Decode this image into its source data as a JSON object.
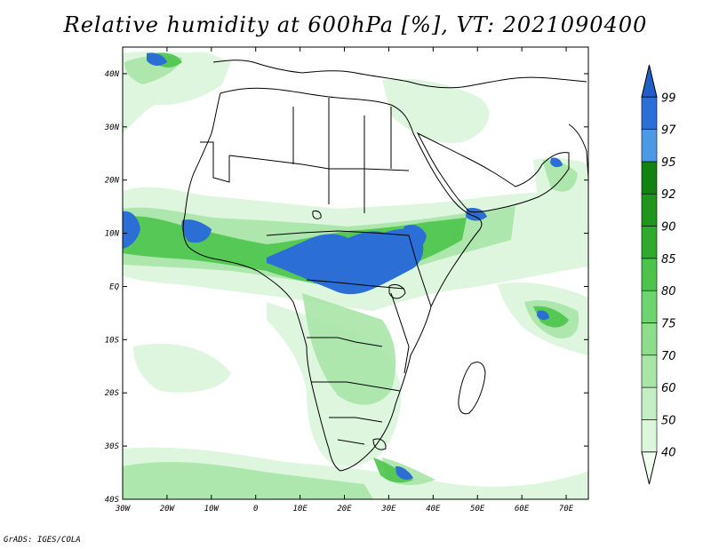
{
  "title": "Relative humidity at 600hPa [%], VT: 2021090400",
  "credit": "GrADS: IGES/COLA",
  "map": {
    "lon_range": [
      -30,
      75
    ],
    "lat_range": [
      -40,
      45
    ],
    "lon_ticks": [
      {
        "value": -30,
        "label": "30W"
      },
      {
        "value": -20,
        "label": "20W"
      },
      {
        "value": -10,
        "label": "10W"
      },
      {
        "value": 0,
        "label": "0"
      },
      {
        "value": 10,
        "label": "10E"
      },
      {
        "value": 20,
        "label": "20E"
      },
      {
        "value": 30,
        "label": "30E"
      },
      {
        "value": 40,
        "label": "40E"
      },
      {
        "value": 50,
        "label": "50E"
      },
      {
        "value": 60,
        "label": "60E"
      },
      {
        "value": 70,
        "label": "70E"
      }
    ],
    "lat_ticks": [
      {
        "value": 40,
        "label": "40N"
      },
      {
        "value": 30,
        "label": "30N"
      },
      {
        "value": 20,
        "label": "20N"
      },
      {
        "value": 10,
        "label": "10N"
      },
      {
        "value": 0,
        "label": "EQ"
      },
      {
        "value": -10,
        "label": "10S"
      },
      {
        "value": -20,
        "label": "20S"
      },
      {
        "value": -30,
        "label": "30S"
      },
      {
        "value": -40,
        "label": "40S"
      }
    ]
  },
  "colorbar": {
    "levels": [
      "40",
      "50",
      "60",
      "70",
      "75",
      "80",
      "85",
      "90",
      "92",
      "95",
      "97",
      "99"
    ],
    "colors": [
      "#f0fff0",
      "#dcf6dc",
      "#c4eec4",
      "#a8e6a8",
      "#8cde8c",
      "#6ed46e",
      "#4cc44c",
      "#2eaa2e",
      "#1e961e",
      "#128212",
      "#4c9ae6",
      "#2a6ed6",
      "#1f5fc8"
    ]
  },
  "colors": {
    "frame": "#000000",
    "coast": "#000000"
  }
}
